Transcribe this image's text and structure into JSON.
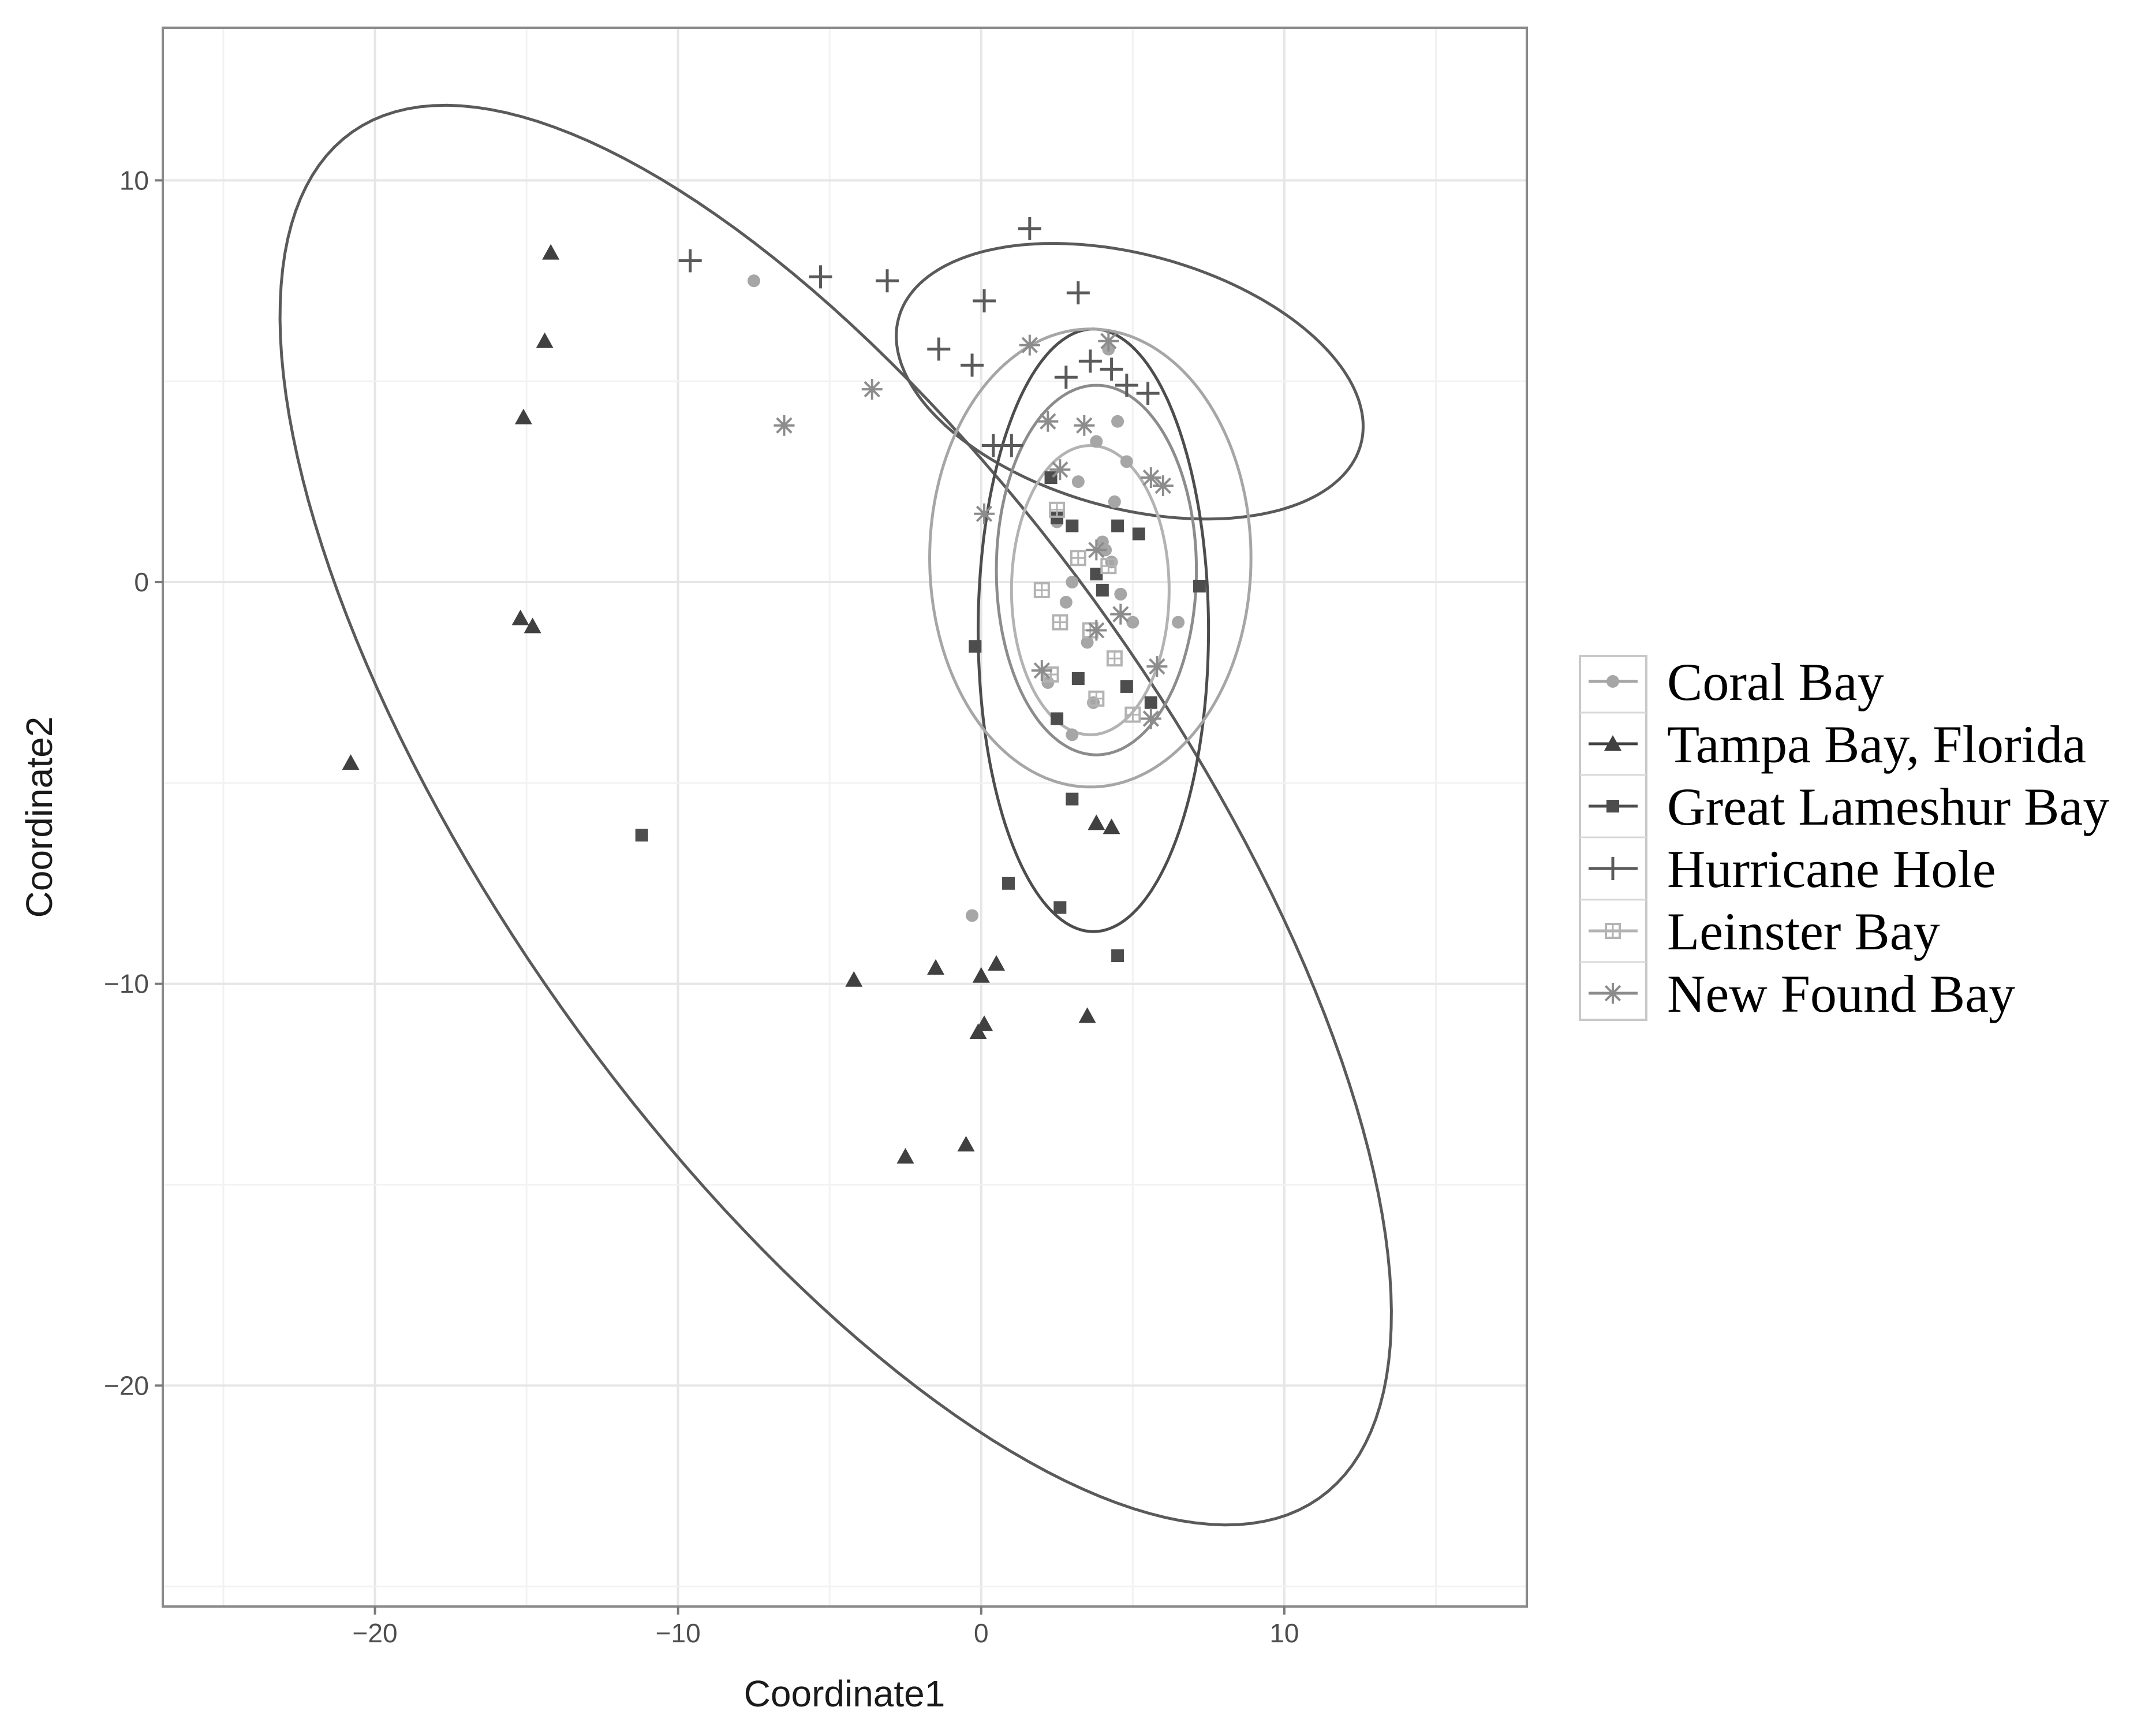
{
  "chart_data": {
    "type": "scatter",
    "xlabel": "Coordinate1",
    "ylabel": "Coordinate2",
    "xlim": [
      -27,
      18
    ],
    "ylim": [
      -25.5,
      13.8
    ],
    "xticks": [
      -20,
      -10,
      0,
      10
    ],
    "xtick_labels": [
      "−20",
      "−10",
      "0",
      "10"
    ],
    "yticks": [
      10,
      0,
      -10,
      -20
    ],
    "ytick_labels": [
      "10",
      "0",
      "−10",
      "−20"
    ],
    "grid": true,
    "legend_position": "right",
    "series": [
      {
        "name": "Coral Bay",
        "marker": "circle",
        "color": "#a6a6a6",
        "x": [
          -7.5,
          4.2,
          4.5,
          3.8,
          4.8,
          3.2,
          2.5,
          4.0,
          4.3,
          3.0,
          2.8,
          4.6,
          5.0,
          3.5,
          2.2,
          3.7,
          4.1,
          4.4,
          6.5,
          3.0,
          -0.3
        ],
        "y": [
          7.5,
          5.8,
          4.0,
          3.5,
          3.0,
          2.5,
          1.5,
          1.0,
          0.5,
          0.0,
          -0.5,
          -0.3,
          -1.0,
          -1.5,
          -2.5,
          -3.0,
          0.8,
          2.0,
          -1.0,
          -3.8,
          -8.3
        ]
      },
      {
        "name": "Tampa Bay, Florida",
        "marker": "triangle",
        "color": "#404040",
        "x": [
          -14.2,
          -14.4,
          -15.1,
          -15.2,
          -14.8,
          -20.8,
          -4.2,
          -1.5,
          0.0,
          0.5,
          0.1,
          -0.1,
          -0.5,
          -2.5,
          3.5,
          3.8,
          4.3
        ],
        "y": [
          8.2,
          6.0,
          4.1,
          -0.9,
          -1.1,
          -4.5,
          -9.9,
          -9.6,
          -9.8,
          -9.5,
          -11.0,
          -11.2,
          -14.0,
          -14.3,
          -10.8,
          -6.0,
          -6.1
        ]
      },
      {
        "name": "Great Lameshur Bay",
        "marker": "square",
        "color": "#4d4d4d",
        "x": [
          -11.2,
          -0.2,
          2.3,
          2.5,
          3.0,
          3.8,
          4.5,
          5.2,
          7.2,
          3.2,
          2.5,
          4.8,
          5.6,
          3.0,
          0.9,
          2.6,
          4.5,
          4.0
        ],
        "y": [
          -6.3,
          -1.6,
          2.6,
          1.6,
          1.4,
          0.2,
          1.4,
          1.2,
          -0.1,
          -2.4,
          -3.4,
          -2.6,
          -3.0,
          -5.4,
          -7.5,
          -8.1,
          -9.3,
          -0.2
        ]
      },
      {
        "name": "Hurricane Hole",
        "marker": "plus",
        "color": "#5a5a5a",
        "x": [
          -9.6,
          -5.3,
          -3.1,
          1.6,
          0.1,
          3.2,
          -1.4,
          -0.3,
          3.6,
          4.3,
          4.8,
          5.5,
          2.8,
          0.4,
          1.0
        ],
        "y": [
          8.0,
          7.6,
          7.5,
          8.8,
          7.0,
          7.2,
          5.8,
          5.4,
          5.5,
          5.3,
          4.9,
          4.7,
          5.1,
          3.4,
          3.4
        ]
      },
      {
        "name": "Leinster Bay",
        "marker": "square-open",
        "color": "#b3b3b3",
        "x": [
          2.5,
          3.2,
          2.0,
          4.2,
          3.6,
          2.6,
          4.4,
          3.8,
          5.0,
          2.3
        ],
        "y": [
          1.8,
          0.6,
          -0.2,
          0.4,
          -1.2,
          -1.0,
          -1.9,
          -2.9,
          -3.3,
          -2.3
        ]
      },
      {
        "name": "New Found Bay",
        "marker": "asterisk",
        "color": "#8c8c8c",
        "x": [
          -6.5,
          -3.6,
          1.6,
          2.2,
          4.2,
          2.6,
          3.4,
          0.1,
          5.6,
          6.0,
          3.8,
          4.6,
          5.8,
          2.0,
          3.8,
          5.6
        ],
        "y": [
          3.9,
          4.8,
          5.9,
          4.0,
          6.0,
          2.8,
          3.9,
          1.7,
          2.6,
          2.4,
          0.8,
          -0.8,
          -2.1,
          -2.2,
          -1.2,
          -3.4
        ]
      }
    ],
    "ellipses": [
      {
        "color": "#5a5a5a",
        "cx": -4.8,
        "cy": -5.8,
        "rx": 23.5,
        "ry": 9.8,
        "angle_deg": -43.5
      },
      {
        "color": "#5a5a5a",
        "cx": 4.9,
        "cy": 5.0,
        "rx": 7.8,
        "ry": 3.2,
        "angle_deg": -10
      },
      {
        "color": "#4d4d4d",
        "cx": 3.7,
        "cy": -1.2,
        "rx": 3.8,
        "ry": 7.5,
        "angle_deg": 0
      },
      {
        "color": "#a6a6a6",
        "cx": 3.6,
        "cy": 0.6,
        "rx": 5.3,
        "ry": 5.7,
        "angle_deg": 0
      },
      {
        "color": "#8c8c8c",
        "cx": 3.8,
        "cy": 0.3,
        "rx": 3.3,
        "ry": 4.6,
        "angle_deg": 0
      },
      {
        "color": "#b3b3b3",
        "cx": 3.6,
        "cy": -0.2,
        "rx": 2.6,
        "ry": 3.6,
        "angle_deg": 0
      }
    ]
  }
}
